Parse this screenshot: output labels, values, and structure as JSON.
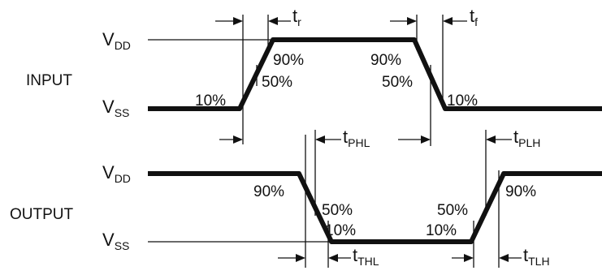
{
  "input": {
    "label": "INPUT",
    "vdd_main": "V",
    "vdd_sub": "DD",
    "vss_main": "V",
    "vss_sub": "SS",
    "p90_rise": "90%",
    "p50_rise": "50%",
    "p10_rise": "10%",
    "p90_fall": "90%",
    "p50_fall": "50%",
    "p10_fall": "10%"
  },
  "output": {
    "label": "OUTPUT",
    "vdd_main": "V",
    "vdd_sub": "DD",
    "vss_main": "V",
    "vss_sub": "SS",
    "p90_fall": "90%",
    "p50_fall": "50%",
    "p10_fall": "10%",
    "p50_rise": "50%",
    "p10_rise": "10%",
    "p90_rise": "90%"
  },
  "timing": {
    "tr_main": "t",
    "tr_sub": "r",
    "tf_main": "t",
    "tf_sub": "f",
    "tphl_main": "t",
    "tphl_sub": "PHL",
    "tplh_main": "t",
    "tplh_sub": "PLH",
    "tthl_main": "t",
    "tthl_sub": "THL",
    "ttlh_main": "t",
    "ttlh_sub": "TLH"
  }
}
